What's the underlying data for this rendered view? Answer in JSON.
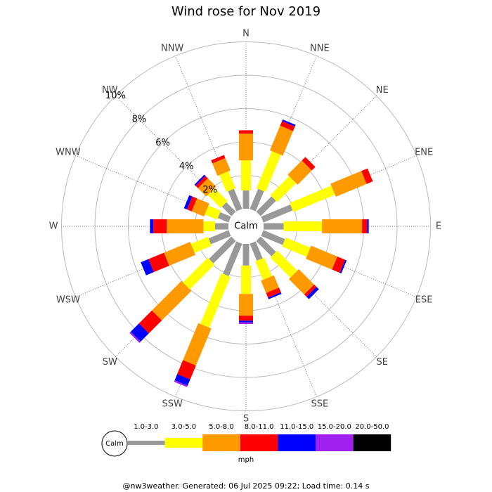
{
  "chart_data": {
    "type": "windrose",
    "title": "Wind rose for Nov 2019",
    "directions": [
      "N",
      "NNE",
      "NE",
      "ENE",
      "E",
      "ESE",
      "SE",
      "SSE",
      "S",
      "SSW",
      "SW",
      "WSW",
      "W",
      "WNW",
      "NW",
      "NNW"
    ],
    "rlim": [
      0,
      10
    ],
    "rticks": [
      {
        "value": 2,
        "label": "2%"
      },
      {
        "value": 4,
        "label": "4%"
      },
      {
        "value": 6,
        "label": "6%"
      },
      {
        "value": 8,
        "label": "8%"
      },
      {
        "value": 10,
        "label": "10%"
      }
    ],
    "calm_label": "Calm",
    "unit": "mph",
    "series": [
      {
        "name": "1.0-3.0",
        "color": "#999999",
        "values": [
          1.1,
          1.3,
          1.3,
          1.9,
          1.2,
          1.4,
          1.3,
          1.1,
          1.3,
          2.1,
          1.9,
          1.3,
          0.8,
          0.7,
          0.8,
          1.3
        ]
      },
      {
        "name": "3.0-5.0",
        "color": "#ffff00",
        "values": [
          1.8,
          2.4,
          1.6,
          2.7,
          2.3,
          1.6,
          1.7,
          1.2,
          1.7,
          3.3,
          2.1,
          1.1,
          0.7,
          0.8,
          1.1,
          1.1
        ]
      },
      {
        "name": "5.0-8.0",
        "color": "#ff9900",
        "values": [
          1.6,
          1.6,
          1.2,
          2.0,
          2.4,
          1.7,
          1.3,
          0.8,
          1.3,
          2.4,
          2.5,
          1.7,
          2.2,
          0.8,
          0.7,
          0.8
        ]
      },
      {
        "name": "8.0-11.0",
        "color": "#ff0000",
        "values": [
          0.2,
          0.3,
          0.3,
          0.4,
          0.3,
          0.5,
          0.2,
          0.3,
          0.3,
          0.9,
          1.1,
          1.0,
          0.8,
          0.3,
          0.2,
          0.2
        ]
      },
      {
        "name": "11.0-15.0",
        "color": "#0000ff",
        "values": [
          0,
          0.1,
          0,
          0,
          0.1,
          0.1,
          0.2,
          0.1,
          0.1,
          0.4,
          0.7,
          0.5,
          0.2,
          0.2,
          0.1,
          0
        ]
      },
      {
        "name": "15.0-20.0",
        "color": "#a020f0",
        "values": [
          0,
          0,
          0,
          0,
          0,
          0,
          0,
          0,
          0.1,
          0.1,
          0.1,
          0,
          0,
          0,
          0,
          0
        ]
      },
      {
        "name": "20.0-50.0",
        "color": "#000000",
        "values": [
          0,
          0,
          0,
          0,
          0,
          0,
          0,
          0,
          0,
          0,
          0,
          0,
          0,
          0,
          0,
          0
        ]
      }
    ],
    "footer": "@nw3weather. Generated: 06 Jul 2025 09:22; Load time: 0.14 s"
  }
}
